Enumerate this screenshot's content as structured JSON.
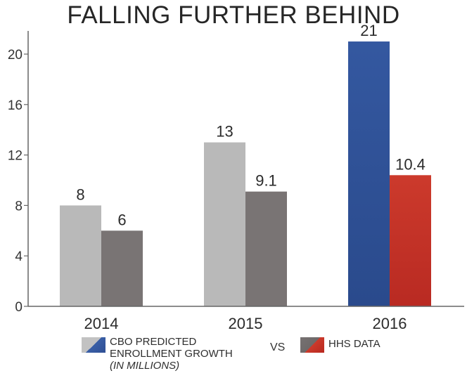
{
  "chart_data": {
    "type": "bar",
    "title": "FALLING FURTHER BEHIND",
    "categories": [
      "2014",
      "2015",
      "2016"
    ],
    "ylim": [
      0,
      22
    ],
    "yticks": [
      "0",
      "4",
      "8",
      "12",
      "16",
      "20"
    ],
    "ytick_values": [
      0,
      4,
      8,
      12,
      16,
      20
    ],
    "grid": false,
    "series": [
      {
        "name": "CBO PREDICTED ENROLLMENT GROWTH",
        "values": [
          8,
          13,
          21
        ],
        "labels": [
          "8",
          "13",
          "21"
        ],
        "colors": [
          "#b9b9b9",
          "#b9b9b9",
          "#2f5196"
        ]
      },
      {
        "name": "HHS DATA",
        "values": [
          6,
          9.1,
          10.4
        ],
        "labels": [
          "6",
          "9.1",
          "10.4"
        ],
        "colors": [
          "#797474",
          "#797474",
          "#c4302a"
        ]
      }
    ],
    "legend": {
      "position": "bottom",
      "cbo_line1": "CBO PREDICTED",
      "cbo_line2": "ENROLLMENT GROWTH",
      "cbo_note": "(IN MILLIONS)",
      "separator": "VS",
      "hhs_label": "HHS DATA"
    },
    "axis_color": "#666666"
  }
}
